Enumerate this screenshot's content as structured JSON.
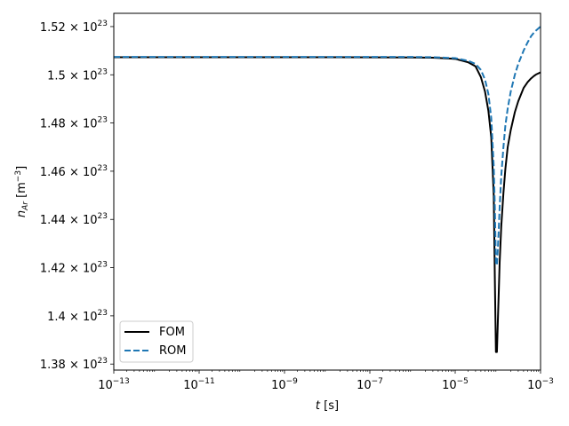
{
  "chart_data": {
    "type": "line",
    "xlabel": "t [s]",
    "ylabel": "n_Ar [m^-3]",
    "x_scale": "log",
    "xlim": [
      1e-13,
      0.001
    ],
    "ylim": [
      1.3775e+23,
      1.5255e+23
    ],
    "grid": false,
    "legend_position": "lower-left",
    "x_ticks": [
      {
        "value": 1e-13,
        "base": "10",
        "exp": "−13"
      },
      {
        "value": 1e-11,
        "base": "10",
        "exp": "−11"
      },
      {
        "value": 1e-09,
        "base": "10",
        "exp": "−9"
      },
      {
        "value": 1e-07,
        "base": "10",
        "exp": "−7"
      },
      {
        "value": 1e-05,
        "base": "10",
        "exp": "−5"
      },
      {
        "value": 0.001,
        "base": "10",
        "exp": "−3"
      }
    ],
    "y_ticks": [
      {
        "value": 1.38e+23,
        "mantissa": "1.38",
        "base": "10",
        "exp": "23"
      },
      {
        "value": 1.4e+23,
        "mantissa": "1.4",
        "base": "10",
        "exp": "23"
      },
      {
        "value": 1.42e+23,
        "mantissa": "1.42",
        "base": "10",
        "exp": "23"
      },
      {
        "value": 1.44e+23,
        "mantissa": "1.44",
        "base": "10",
        "exp": "23"
      },
      {
        "value": 1.46e+23,
        "mantissa": "1.46",
        "base": "10",
        "exp": "23"
      },
      {
        "value": 1.48e+23,
        "mantissa": "1.48",
        "base": "10",
        "exp": "23"
      },
      {
        "value": 1.5e+23,
        "mantissa": "1.5",
        "base": "10",
        "exp": "23"
      },
      {
        "value": 1.52e+23,
        "mantissa": "1.52",
        "base": "10",
        "exp": "23"
      }
    ],
    "series": [
      {
        "name": "FOM",
        "color": "#000000",
        "dash": "solid",
        "x": [
          1e-13,
          1e-09,
          1e-06,
          3e-06,
          1e-05,
          2e-05,
          3e-05,
          4e-05,
          5e-05,
          6e-05,
          7e-05,
          8e-05,
          8.5e-05,
          9e-05,
          9.5e-05,
          0.0001,
          0.000105,
          0.00011,
          0.00012,
          0.000135,
          0.00015,
          0.00017,
          0.0002,
          0.00025,
          0.0003,
          0.0004,
          0.0005,
          0.0006,
          0.0007,
          0.0008,
          0.001
        ],
        "y": [
          1.5073e+23,
          1.5073e+23,
          1.5072e+23,
          1.5071e+23,
          1.5066e+23,
          1.5052e+23,
          1.5035e+23,
          1.499e+23,
          1.493e+23,
          1.485e+23,
          1.474e+23,
          1.45e+23,
          1.415e+23,
          1.385e+23,
          1.385e+23,
          1.398e+23,
          1.41e+23,
          1.422e+23,
          1.437e+23,
          1.451e+23,
          1.461e+23,
          1.47e+23,
          1.477e+23,
          1.4845e+23,
          1.489e+23,
          1.4945e+23,
          1.497e+23,
          1.4985e+23,
          1.4995e+23,
          1.5002e+23,
          1.501e+23
        ]
      },
      {
        "name": "ROM",
        "color": "#1f77b4",
        "dash": "dashed",
        "x": [
          1e-13,
          1e-09,
          1e-06,
          3e-06,
          1e-05,
          2e-05,
          3e-05,
          4e-05,
          5e-05,
          6e-05,
          7e-05,
          8e-05,
          8.5e-05,
          9e-05,
          9.5e-05,
          0.0001,
          0.000105,
          0.00011,
          0.00012,
          0.000135,
          0.00015,
          0.00017,
          0.0002,
          0.00025,
          0.0003,
          0.0004,
          0.0005,
          0.0006,
          0.0007,
          0.0008,
          0.001
        ],
        "y": [
          1.5074e+23,
          1.5074e+23,
          1.5074e+23,
          1.5073e+23,
          1.5069e+23,
          1.5058e+23,
          1.5045e+23,
          1.502e+23,
          1.498e+23,
          1.492e+23,
          1.482e+23,
          1.462e+23,
          1.445e+23,
          1.422e+23,
          1.421e+23,
          1.428e+23,
          1.436e+23,
          1.445e+23,
          1.458e+23,
          1.47e+23,
          1.479e+23,
          1.486e+23,
          1.493e+23,
          1.5e+23,
          1.5045e+23,
          1.51e+23,
          1.5135e+23,
          1.516e+23,
          1.5175e+23,
          1.5185e+23,
          1.52e+23
        ]
      }
    ]
  }
}
